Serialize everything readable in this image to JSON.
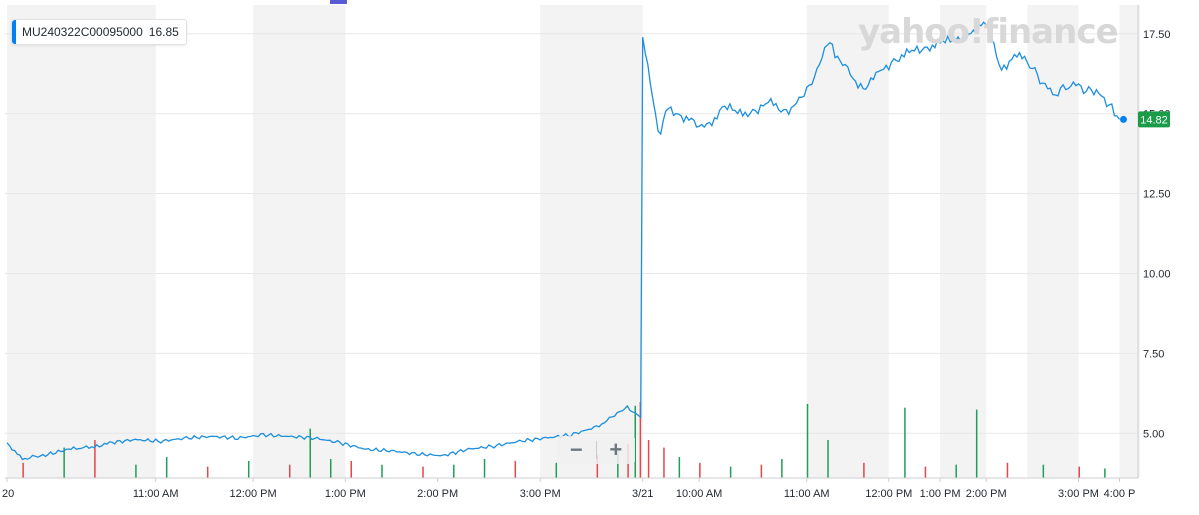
{
  "legend": {
    "symbol": "MU240322C00095000",
    "value": "16.85"
  },
  "watermark": "yahoo!finance",
  "zoom": {
    "minus": "−",
    "plus": "+"
  },
  "colors": {
    "line": "#1d8fdd",
    "up_volume": "#1e9e5a",
    "down_volume": "#e0484a",
    "last_badge": "#1a9c49",
    "shade": "#f3f3f3"
  },
  "chart_data": {
    "type": "line",
    "series": [
      {
        "name": "MU240322C00095000"
      }
    ],
    "ylim": [
      3.6,
      18.4
    ],
    "y_ticks": [
      "17.50",
      "15.00",
      "12.50",
      "10.00",
      "7.50",
      "5.00"
    ],
    "x_ticks": [
      "20",
      "11:00 AM",
      "12:00 PM",
      "1:00 PM",
      "2:00 PM",
      "3:00 PM",
      "3/21",
      "10:00 AM",
      "11:00 AM",
      "12:00 PM",
      "1:00 PM",
      "2:00 PM",
      "3:00 PM",
      "4:00 P"
    ],
    "last_value": "14.82",
    "points": [
      [
        0,
        4.7
      ],
      [
        0.15,
        4.2
      ],
      [
        0.35,
        4.3
      ],
      [
        0.6,
        4.5
      ],
      [
        0.9,
        4.6
      ],
      [
        1.0,
        4.7
      ],
      [
        1.25,
        4.8
      ],
      [
        1.5,
        4.75
      ],
      [
        1.75,
        4.85
      ],
      [
        2.0,
        4.9
      ],
      [
        2.25,
        4.85
      ],
      [
        2.5,
        4.95
      ],
      [
        2.75,
        4.9
      ],
      [
        3.0,
        4.85
      ],
      [
        3.25,
        4.7
      ],
      [
        3.5,
        4.5
      ],
      [
        3.75,
        4.45
      ],
      [
        4.0,
        4.35
      ],
      [
        4.25,
        4.3
      ],
      [
        4.5,
        4.5
      ],
      [
        4.75,
        4.6
      ],
      [
        5.0,
        4.75
      ],
      [
        5.25,
        4.85
      ],
      [
        5.5,
        4.95
      ],
      [
        5.75,
        5.2
      ],
      [
        5.9,
        5.5
      ],
      [
        6.05,
        5.8
      ],
      [
        6.18,
        5.5
      ],
      [
        6.2,
        17.4
      ],
      [
        6.3,
        15.5
      ],
      [
        6.35,
        14.3
      ],
      [
        6.45,
        15.2
      ],
      [
        6.6,
        14.9
      ],
      [
        6.75,
        14.6
      ],
      [
        6.85,
        14.7
      ],
      [
        7.0,
        15.2
      ],
      [
        7.15,
        15.0
      ],
      [
        7.3,
        15.1
      ],
      [
        7.45,
        15.3
      ],
      [
        7.6,
        15.1
      ],
      [
        7.75,
        15.4
      ],
      [
        7.9,
        16.3
      ],
      [
        8.0,
        17.3
      ],
      [
        8.1,
        16.8
      ],
      [
        8.2,
        16.3
      ],
      [
        8.35,
        15.8
      ],
      [
        8.5,
        16.2
      ],
      [
        8.65,
        16.7
      ],
      [
        8.8,
        16.9
      ],
      [
        8.95,
        17.0
      ],
      [
        9.1,
        17.3
      ],
      [
        9.25,
        17.2
      ],
      [
        9.4,
        17.6
      ],
      [
        9.55,
        17.8
      ],
      [
        9.7,
        16.4
      ],
      [
        9.85,
        16.9
      ],
      [
        10.0,
        16.4
      ],
      [
        10.2,
        15.6
      ],
      [
        10.4,
        15.9
      ],
      [
        10.6,
        15.7
      ],
      [
        10.75,
        15.3
      ],
      [
        10.85,
        14.82
      ]
    ],
    "volume": [
      [
        0.15,
        0.4,
        "down"
      ],
      [
        0.55,
        0.8,
        "up"
      ],
      [
        0.85,
        1.0,
        "down"
      ],
      [
        1.25,
        0.35,
        "up"
      ],
      [
        1.55,
        0.55,
        "up"
      ],
      [
        1.95,
        0.3,
        "down"
      ],
      [
        2.35,
        0.45,
        "up"
      ],
      [
        2.75,
        0.35,
        "down"
      ],
      [
        2.95,
        1.3,
        "up"
      ],
      [
        3.15,
        0.5,
        "up"
      ],
      [
        3.35,
        0.45,
        "down"
      ],
      [
        3.65,
        0.35,
        "up"
      ],
      [
        4.05,
        0.3,
        "down"
      ],
      [
        4.35,
        0.35,
        "up"
      ],
      [
        4.65,
        0.5,
        "up"
      ],
      [
        4.95,
        0.45,
        "down"
      ],
      [
        5.35,
        0.4,
        "up"
      ],
      [
        5.75,
        0.6,
        "down"
      ],
      [
        5.95,
        0.7,
        "up"
      ],
      [
        6.05,
        0.9,
        "down"
      ],
      [
        6.12,
        1.9,
        "up"
      ],
      [
        6.17,
        2.0,
        "down"
      ],
      [
        6.25,
        1.0,
        "down"
      ],
      [
        6.4,
        0.8,
        "down"
      ],
      [
        6.55,
        0.55,
        "up"
      ],
      [
        6.75,
        0.4,
        "down"
      ],
      [
        7.05,
        0.3,
        "up"
      ],
      [
        7.35,
        0.35,
        "down"
      ],
      [
        7.55,
        0.5,
        "up"
      ],
      [
        7.8,
        1.95,
        "up"
      ],
      [
        8.0,
        1.0,
        "up"
      ],
      [
        8.35,
        0.4,
        "down"
      ],
      [
        8.75,
        1.85,
        "up"
      ],
      [
        8.95,
        0.3,
        "down"
      ],
      [
        9.25,
        0.35,
        "up"
      ],
      [
        9.45,
        1.8,
        "up"
      ],
      [
        9.75,
        0.4,
        "down"
      ],
      [
        10.1,
        0.35,
        "up"
      ],
      [
        10.45,
        0.3,
        "down"
      ],
      [
        10.7,
        0.25,
        "up"
      ]
    ]
  }
}
